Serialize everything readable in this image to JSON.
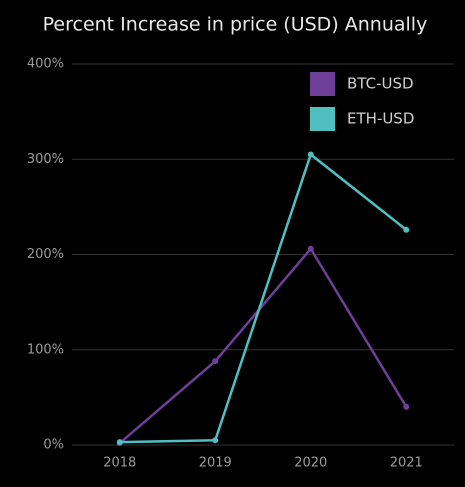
{
  "chart_data": {
    "type": "line",
    "title": "Percent Increase in price (USD) Annually",
    "categories": [
      "2018",
      "2019",
      "2020",
      "2021"
    ],
    "series": [
      {
        "name": "BTC-USD",
        "color": "#6e3f98",
        "values": [
          2,
          88,
          206,
          40
        ]
      },
      {
        "name": "ETH-USD",
        "color": "#4fbfc2",
        "values": [
          3,
          5,
          305,
          226
        ]
      }
    ],
    "ylim": [
      0,
      400
    ],
    "yticks": [
      {
        "value": 0,
        "label": "0%"
      },
      {
        "value": 100,
        "label": "100%"
      },
      {
        "value": 200,
        "label": "200%"
      },
      {
        "value": 300,
        "label": "300%"
      },
      {
        "value": 400,
        "label": "400%"
      }
    ],
    "grid": true,
    "legend": "top-right"
  }
}
